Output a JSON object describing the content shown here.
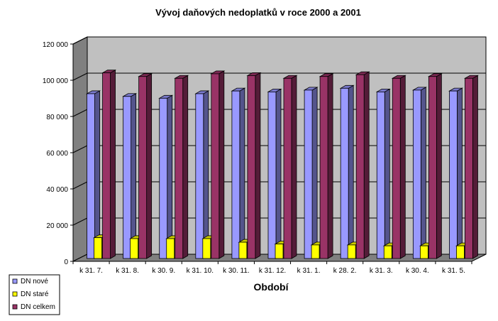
{
  "chart_data": {
    "type": "bar",
    "title": "Vývoj daňových nedoplatků v roce 2000  a 2001",
    "xlabel": "Období",
    "ylabel": "",
    "ylim": [
      0,
      120000
    ],
    "yticks": [
      0,
      20000,
      40000,
      60000,
      80000,
      100000,
      120000
    ],
    "ytick_labels": [
      "0",
      "20 000",
      "40 000",
      "60 000",
      "80 000",
      "100 000",
      "120 000"
    ],
    "categories": [
      "k 31. 7.",
      "k 31. 8.",
      "k 30. 9.",
      "k 31. 10.",
      "k 30. 11.",
      "k 31. 12.",
      "k 31. 1.",
      "k 28. 2.",
      "k 31. 3.",
      "k 30. 4.",
      "k 31. 5."
    ],
    "series": [
      {
        "name": "DN nové",
        "color": "#9999ff",
        "values": [
          91000,
          89500,
          88500,
          91000,
          92500,
          92000,
          93000,
          94000,
          92000,
          93000,
          92500
        ]
      },
      {
        "name": "DN staré",
        "color": "#ffff00",
        "values": [
          11500,
          11000,
          11000,
          11000,
          9000,
          8000,
          7500,
          7500,
          7000,
          7000,
          7000
        ]
      },
      {
        "name": "DN celkem",
        "color": "#993366",
        "values": [
          102500,
          100500,
          99500,
          102000,
          101000,
          99500,
          100500,
          101500,
          99500,
          100500,
          99500
        ]
      }
    ],
    "grid": true,
    "legend": "bottom-left"
  }
}
